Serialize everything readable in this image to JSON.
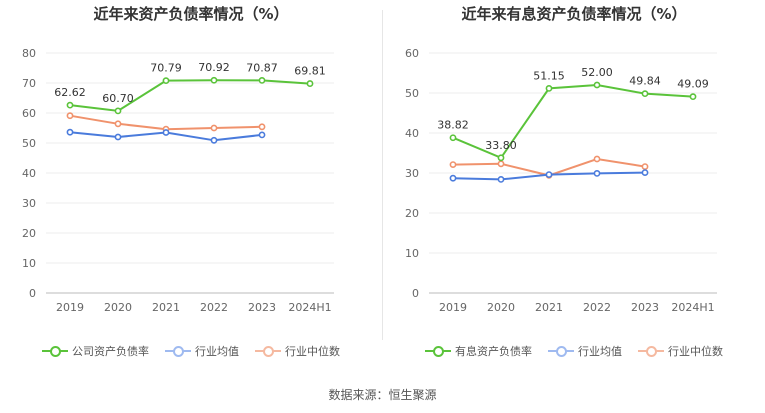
{
  "chart_data": [
    {
      "type": "line",
      "title": "近年来资产负债率情况（%）",
      "categories": [
        "2019",
        "2020",
        "2021",
        "2022",
        "2023",
        "2024H1"
      ],
      "ylim": [
        0,
        80
      ],
      "yticks": [
        0,
        10,
        20,
        30,
        40,
        50,
        60,
        70,
        80
      ],
      "series": [
        {
          "name": "公司资产负债率",
          "color": "#5ac33a",
          "values": [
            62.62,
            60.7,
            70.79,
            70.92,
            70.87,
            69.81
          ],
          "labels": [
            "62.62",
            "60.70",
            "70.79",
            "70.92",
            "70.87",
            "69.81"
          ]
        },
        {
          "name": "行业均值",
          "color": "#4a7bdc",
          "values": [
            53.6,
            52.0,
            53.5,
            50.9,
            52.7,
            null
          ],
          "labels": []
        },
        {
          "name": "行业中位数",
          "color": "#f0926c",
          "values": [
            59.1,
            56.4,
            54.6,
            55.0,
            55.4,
            null
          ],
          "labels": []
        }
      ]
    },
    {
      "type": "line",
      "title": "近年来有息资产负债率情况（%）",
      "categories": [
        "2019",
        "2020",
        "2021",
        "2022",
        "2023",
        "2024H1"
      ],
      "ylim": [
        0,
        60
      ],
      "yticks": [
        0,
        10,
        20,
        30,
        40,
        50,
        60
      ],
      "series": [
        {
          "name": "有息资产负债率",
          "color": "#5ac33a",
          "values": [
            38.82,
            33.8,
            51.15,
            52.0,
            49.84,
            49.09
          ],
          "labels": [
            "38.82",
            "33.80",
            "51.15",
            "52.00",
            "49.84",
            "49.09"
          ]
        },
        {
          "name": "行业均值",
          "color": "#4a7bdc",
          "values": [
            28.7,
            28.4,
            29.6,
            29.9,
            30.1,
            null
          ],
          "labels": []
        },
        {
          "name": "行业中位数",
          "color": "#f0926c",
          "values": [
            32.1,
            32.3,
            29.4,
            33.5,
            31.6,
            null
          ],
          "labels": []
        }
      ]
    }
  ],
  "footer": {
    "source": "数据来源：恒生聚源"
  }
}
